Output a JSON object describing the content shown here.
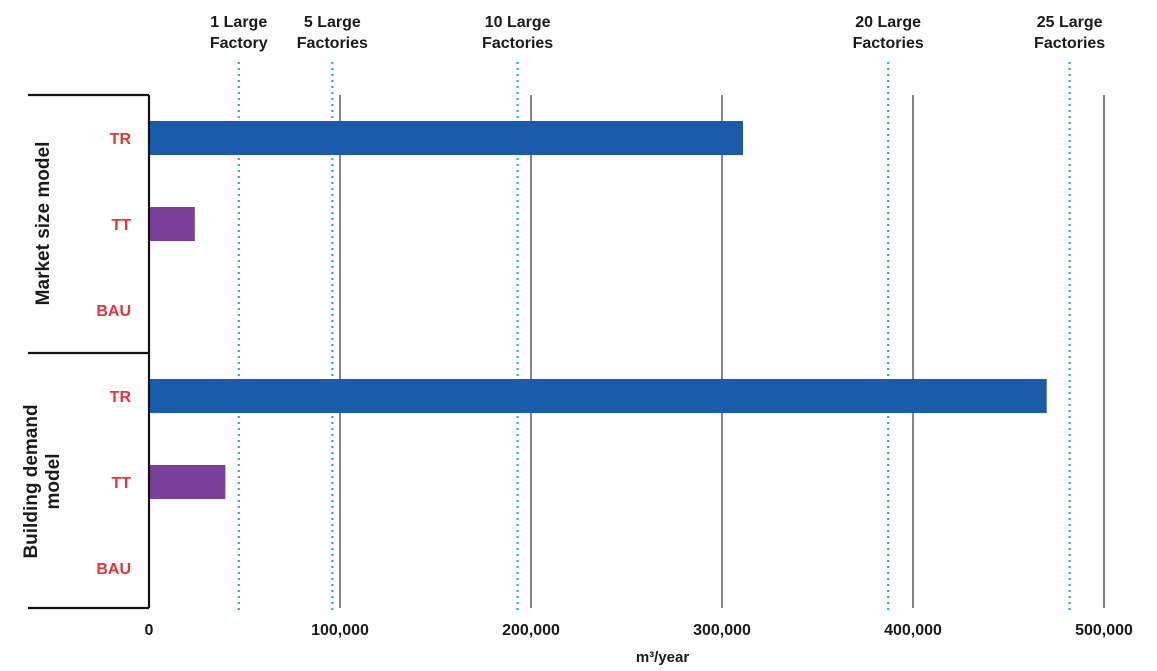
{
  "chart_data": {
    "type": "bar",
    "orientation": "horizontal",
    "xlabel": "m³/year",
    "xlim": [
      0,
      500000
    ],
    "x_ticks": [
      {
        "value": 0,
        "label": "0"
      },
      {
        "value": 100000,
        "label": "100,000"
      },
      {
        "value": 200000,
        "label": "200,000"
      },
      {
        "value": 300000,
        "label": "300,000"
      },
      {
        "value": 400000,
        "label": "400,000"
      },
      {
        "value": 500000,
        "label": "500,000"
      }
    ],
    "grid": "vertical",
    "groups": [
      {
        "label": "Market size model",
        "bars": [
          {
            "category": "TR",
            "value": 311000,
            "color": "#1a5ca9"
          },
          {
            "category": "TT",
            "value": 24000,
            "color": "#7a3f96"
          },
          {
            "category": "BAU",
            "value": 0,
            "color": "#7a3f96"
          }
        ]
      },
      {
        "label": "Building demand model",
        "bars": [
          {
            "category": "TR",
            "value": 470000,
            "color": "#1a5ca9"
          },
          {
            "category": "TT",
            "value": 40000,
            "color": "#7a3f96"
          },
          {
            "category": "BAU",
            "value": 0,
            "color": "#7a3f96"
          }
        ]
      }
    ],
    "reference_lines": [
      {
        "value": 47000,
        "label_lines": [
          "1 Large",
          "Factory"
        ]
      },
      {
        "value": 96000,
        "label_lines": [
          "5 Large",
          "Factories"
        ]
      },
      {
        "value": 193000,
        "label_lines": [
          "10 Large",
          "Factories"
        ]
      },
      {
        "value": 387000,
        "label_lines": [
          "20 Large",
          "Factories"
        ]
      },
      {
        "value": 482000,
        "label_lines": [
          "25 Large",
          "Factories"
        ]
      }
    ],
    "reference_line_color": "#2ab3a6",
    "grid_color": "#333333"
  }
}
